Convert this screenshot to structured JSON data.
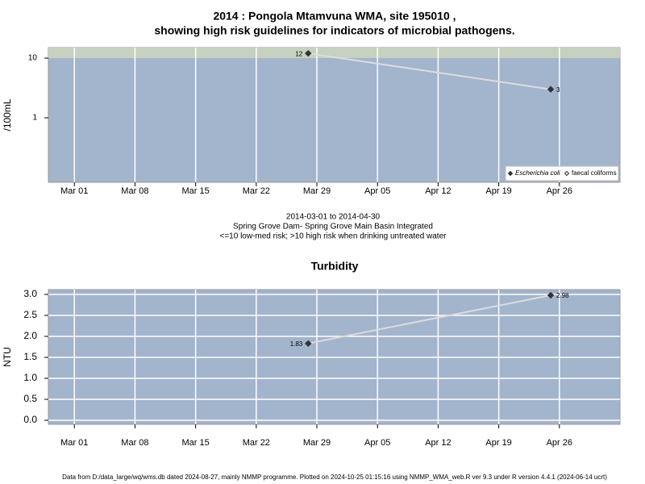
{
  "chart_data": [
    {
      "type": "line",
      "title": "2014 : Pongola Mtamvuna WMA, site 195010 ,",
      "subtitle": "showing high risk guidelines for indicators of microbial pathogens.",
      "ylabel": "/100mL",
      "log_y": true,
      "ylim": [
        0.083,
        15
      ],
      "yticks": [
        1,
        10
      ],
      "threshold": 10,
      "threshold_color": "#c6d1c1",
      "xlim": [
        "2014-02-26",
        "2014-05-03"
      ],
      "xticks": [
        {
          "value": "2014-03-01",
          "label": "Mar 01"
        },
        {
          "value": "2014-03-08",
          "label": "Mar 08"
        },
        {
          "value": "2014-03-15",
          "label": "Mar 15"
        },
        {
          "value": "2014-03-22",
          "label": "Mar 22"
        },
        {
          "value": "2014-03-29",
          "label": "Mar 29"
        },
        {
          "value": "2014-04-05",
          "label": "Apr 05"
        },
        {
          "value": "2014-04-12",
          "label": "Apr 12"
        },
        {
          "value": "2014-04-19",
          "label": "Apr 19"
        },
        {
          "value": "2014-04-26",
          "label": "Apr 26"
        }
      ],
      "grid": "x",
      "legend": "bottom-right",
      "x": [
        "2014-03-28",
        "2014-04-25"
      ],
      "series": [
        {
          "name": "Escherichia coli",
          "color": "#333333",
          "line_color": "#dcdcdc",
          "marker": "filled",
          "values": [
            12,
            3
          ]
        },
        {
          "name": "faecal coliforms",
          "color": "#333333",
          "line_color": "#dcdcdc",
          "marker": "open",
          "values": [
            null,
            null
          ]
        }
      ],
      "caption": [
        "2014-03-01 to 2014-04-30",
        "Spring Grove Dam- Spring Grove Main Basin Integrated",
        "<=10 low-med risk; >10 high risk when drinking untreated water"
      ]
    },
    {
      "type": "line",
      "title": "Turbidity",
      "ylabel": "NTU",
      "log_y": false,
      "ylim": [
        -0.096,
        3.115
      ],
      "yticks": [
        {
          "value": 0,
          "label": "0.0"
        },
        {
          "value": 0.5,
          "label": "0.5"
        },
        {
          "value": 1,
          "label": "1.0"
        },
        {
          "value": 1.5,
          "label": "1.5"
        },
        {
          "value": 2,
          "label": "2.0"
        },
        {
          "value": 2.5,
          "label": "2.5"
        },
        {
          "value": 3,
          "label": "3.0"
        }
      ],
      "xlim": [
        "2014-02-26",
        "2014-05-03"
      ],
      "xticks": [
        {
          "value": "2014-03-01",
          "label": "Mar 01"
        },
        {
          "value": "2014-03-08",
          "label": "Mar 08"
        },
        {
          "value": "2014-03-15",
          "label": "Mar 15"
        },
        {
          "value": "2014-03-22",
          "label": "Mar 22"
        },
        {
          "value": "2014-03-29",
          "label": "Mar 29"
        },
        {
          "value": "2014-04-05",
          "label": "Apr 05"
        },
        {
          "value": "2014-04-12",
          "label": "Apr 12"
        },
        {
          "value": "2014-04-19",
          "label": "Apr 19"
        },
        {
          "value": "2014-04-26",
          "label": "Apr 26"
        }
      ],
      "grid": "both",
      "x": [
        "2014-03-28",
        "2014-04-25"
      ],
      "series": [
        {
          "color": "#333333",
          "line_color": "#dcdcdc",
          "marker": "filled",
          "values": [
            1.83,
            2.98
          ]
        }
      ]
    }
  ],
  "footer": "Data from D:/data_large/wq/wms.db dated 2024-08-27, mainly NMMP programme. Plotted on 2024-10-25 01:15:16 using NMMP_WMA_web.R ver 9.3 under R version 4.4.1 (2024-06-14 ucrt)"
}
